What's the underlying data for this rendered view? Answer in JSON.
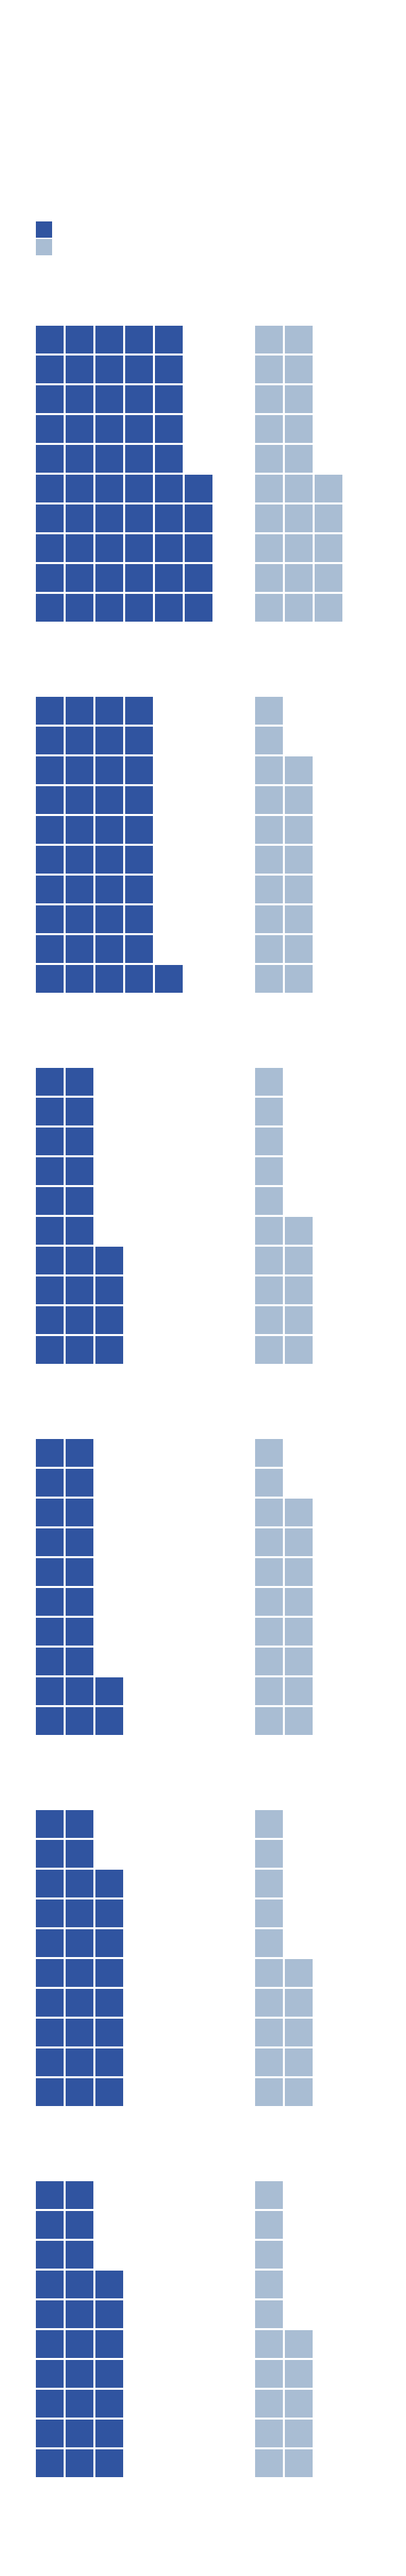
{
  "chart_data": {
    "type": "waffle",
    "colors": {
      "series_a": "#3054a0",
      "series_b": "#a9bdd3"
    },
    "legend": [
      {
        "series": "series_a",
        "color": "#3054a0"
      },
      {
        "series": "series_b",
        "color": "#a9bdd3"
      }
    ],
    "legend_position": "top-left",
    "panels": [
      {
        "series_a": {
          "count": 55,
          "column_heights": [
            10,
            10,
            10,
            10,
            10,
            5
          ]
        },
        "series_b": {
          "count": 25,
          "column_heights": [
            10,
            10,
            5
          ]
        }
      },
      {
        "series_a": {
          "count": 41,
          "column_heights": [
            10,
            10,
            10,
            10,
            1
          ]
        },
        "series_b": {
          "count": 18,
          "column_heights": [
            10,
            8
          ]
        }
      },
      {
        "series_a": {
          "count": 24,
          "column_heights": [
            10,
            10,
            4
          ]
        },
        "series_b": {
          "count": 15,
          "column_heights": [
            10,
            5
          ]
        }
      },
      {
        "series_a": {
          "count": 22,
          "column_heights": [
            10,
            10,
            2
          ]
        },
        "series_b": {
          "count": 18,
          "column_heights": [
            10,
            8
          ]
        }
      },
      {
        "series_a": {
          "count": 28,
          "column_heights": [
            10,
            10,
            8
          ]
        },
        "series_b": {
          "count": 15,
          "column_heights": [
            10,
            5
          ]
        }
      },
      {
        "series_a": {
          "count": 27,
          "column_heights": [
            10,
            10,
            7
          ]
        },
        "series_b": {
          "count": 15,
          "column_heights": [
            10,
            5
          ]
        }
      }
    ]
  }
}
